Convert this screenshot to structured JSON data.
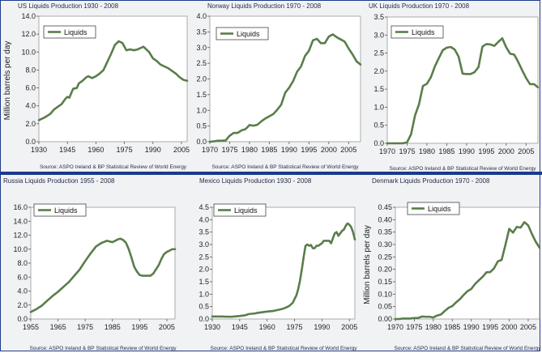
{
  "ylabel_text": "Million barrels per day",
  "charts": [
    {
      "title": "US Liquids Production 1930 - 2008",
      "source": "Source: ASPO Ireland & BP Statistical Review of World Energy",
      "legend": "Liquids",
      "ylabel": "Million barrels per day",
      "xticks": [
        1930,
        1945,
        1960,
        1975,
        1990,
        2005
      ],
      "xlim": [
        1930,
        2008
      ],
      "yticks": [
        "0.0",
        "2.0",
        "4.0",
        "6.0",
        "8.0",
        "10.0",
        "12.0",
        "14.0"
      ],
      "ylim": [
        0,
        14
      ],
      "points": [
        [
          1930,
          2.4
        ],
        [
          1933,
          2.7
        ],
        [
          1936,
          3.1
        ],
        [
          1938,
          3.6
        ],
        [
          1940,
          3.9
        ],
        [
          1942,
          4.2
        ],
        [
          1944,
          4.8
        ],
        [
          1945,
          5.0
        ],
        [
          1946,
          4.9
        ],
        [
          1948,
          5.9
        ],
        [
          1950,
          6.0
        ],
        [
          1951,
          6.5
        ],
        [
          1953,
          6.8
        ],
        [
          1955,
          7.2
        ],
        [
          1956,
          7.3
        ],
        [
          1958,
          7.1
        ],
        [
          1960,
          7.3
        ],
        [
          1962,
          7.6
        ],
        [
          1964,
          8.0
        ],
        [
          1966,
          8.9
        ],
        [
          1968,
          9.8
        ],
        [
          1970,
          10.8
        ],
        [
          1972,
          11.2
        ],
        [
          1974,
          11.0
        ],
        [
          1976,
          10.2
        ],
        [
          1978,
          10.3
        ],
        [
          1980,
          10.2
        ],
        [
          1982,
          10.3
        ],
        [
          1984,
          10.5
        ],
        [
          1985,
          10.6
        ],
        [
          1986,
          10.4
        ],
        [
          1988,
          10.0
        ],
        [
          1990,
          9.3
        ],
        [
          1992,
          9.0
        ],
        [
          1994,
          8.6
        ],
        [
          1996,
          8.4
        ],
        [
          1998,
          8.2
        ],
        [
          2000,
          7.9
        ],
        [
          2002,
          7.6
        ],
        [
          2004,
          7.2
        ],
        [
          2006,
          6.9
        ],
        [
          2008,
          6.8
        ]
      ]
    },
    {
      "title": "Norway Liquids Production 1970 - 2008",
      "source": "Source: ASPO Ireland & BP Statistical Review of World Energy",
      "legend": "Liquids",
      "ylabel": "",
      "xticks": [
        1970,
        1975,
        1980,
        1985,
        1990,
        1995,
        2000,
        2005
      ],
      "xlim": [
        1970,
        2008
      ],
      "yticks": [
        "0.0",
        "0.5",
        "1.0",
        "1.5",
        "2.0",
        "2.5",
        "3.0",
        "3.5",
        "4.0"
      ],
      "ylim": [
        0,
        4
      ],
      "points": [
        [
          1970,
          0.0
        ],
        [
          1971,
          0.01
        ],
        [
          1972,
          0.03
        ],
        [
          1973,
          0.03
        ],
        [
          1974,
          0.04
        ],
        [
          1975,
          0.19
        ],
        [
          1976,
          0.28
        ],
        [
          1977,
          0.28
        ],
        [
          1978,
          0.36
        ],
        [
          1979,
          0.4
        ],
        [
          1980,
          0.53
        ],
        [
          1981,
          0.51
        ],
        [
          1982,
          0.54
        ],
        [
          1983,
          0.65
        ],
        [
          1984,
          0.74
        ],
        [
          1985,
          0.81
        ],
        [
          1986,
          0.88
        ],
        [
          1987,
          1.02
        ],
        [
          1988,
          1.18
        ],
        [
          1989,
          1.56
        ],
        [
          1990,
          1.72
        ],
        [
          1991,
          1.93
        ],
        [
          1992,
          2.23
        ],
        [
          1993,
          2.4
        ],
        [
          1994,
          2.73
        ],
        [
          1995,
          2.9
        ],
        [
          1996,
          3.23
        ],
        [
          1997,
          3.28
        ],
        [
          1998,
          3.14
        ],
        [
          1999,
          3.14
        ],
        [
          2000,
          3.35
        ],
        [
          2001,
          3.42
        ],
        [
          2002,
          3.33
        ],
        [
          2003,
          3.26
        ],
        [
          2004,
          3.19
        ],
        [
          2005,
          2.97
        ],
        [
          2006,
          2.78
        ],
        [
          2007,
          2.56
        ],
        [
          2008,
          2.46
        ]
      ]
    },
    {
      "title": "UK Liquids Production 1970 - 2008",
      "source": "Source: ASPO Ireland & BP Statistical Review of World Energy",
      "legend": "Liquids",
      "ylabel": "",
      "xticks": [
        1970,
        1975,
        1980,
        1985,
        1990,
        1995,
        2000,
        2005
      ],
      "xlim": [
        1970,
        2008
      ],
      "yticks": [
        "0.0",
        "0.5",
        "1.0",
        "1.5",
        "2.0",
        "2.5",
        "3.0",
        "3.5"
      ],
      "ylim": [
        0,
        3.5
      ],
      "points": [
        [
          1970,
          0.0
        ],
        [
          1971,
          0.0
        ],
        [
          1972,
          0.0
        ],
        [
          1973,
          0.0
        ],
        [
          1974,
          0.0
        ],
        [
          1975,
          0.03
        ],
        [
          1976,
          0.25
        ],
        [
          1977,
          0.77
        ],
        [
          1978,
          1.08
        ],
        [
          1979,
          1.59
        ],
        [
          1980,
          1.65
        ],
        [
          1981,
          1.83
        ],
        [
          1982,
          2.13
        ],
        [
          1983,
          2.36
        ],
        [
          1984,
          2.58
        ],
        [
          1985,
          2.65
        ],
        [
          1986,
          2.67
        ],
        [
          1987,
          2.6
        ],
        [
          1988,
          2.4
        ],
        [
          1989,
          1.93
        ],
        [
          1990,
          1.92
        ],
        [
          1991,
          1.92
        ],
        [
          1992,
          1.97
        ],
        [
          1993,
          2.11
        ],
        [
          1994,
          2.68
        ],
        [
          1995,
          2.75
        ],
        [
          1996,
          2.74
        ],
        [
          1997,
          2.7
        ],
        [
          1998,
          2.81
        ],
        [
          1999,
          2.91
        ],
        [
          2000,
          2.66
        ],
        [
          2001,
          2.48
        ],
        [
          2002,
          2.46
        ],
        [
          2003,
          2.26
        ],
        [
          2004,
          2.03
        ],
        [
          2005,
          1.81
        ],
        [
          2006,
          1.64
        ],
        [
          2007,
          1.64
        ],
        [
          2008,
          1.55
        ]
      ]
    },
    {
      "title": "Russia Liquids Production 1955 - 2008",
      "source": "Source: ASPO Ireland & BP Statistical Review of World Energy",
      "legend": "Liquids",
      "ylabel": "",
      "xticks": [
        1955,
        1965,
        1975,
        1985,
        1995,
        2005
      ],
      "xlim": [
        1955,
        2008
      ],
      "yticks": [
        "0.0",
        "2.0",
        "4.0",
        "6.0",
        "8.0",
        "10.0",
        "12.0",
        "14.0",
        "16.0"
      ],
      "ylim": [
        0,
        16
      ],
      "points": [
        [
          1955,
          1.0
        ],
        [
          1957,
          1.4
        ],
        [
          1959,
          1.9
        ],
        [
          1961,
          2.6
        ],
        [
          1963,
          3.3
        ],
        [
          1965,
          3.9
        ],
        [
          1967,
          4.6
        ],
        [
          1969,
          5.3
        ],
        [
          1971,
          6.2
        ],
        [
          1973,
          7.1
        ],
        [
          1975,
          8.3
        ],
        [
          1977,
          9.4
        ],
        [
          1979,
          10.4
        ],
        [
          1981,
          10.9
        ],
        [
          1983,
          11.2
        ],
        [
          1985,
          11.0
        ],
        [
          1987,
          11.4
        ],
        [
          1988,
          11.5
        ],
        [
          1989,
          11.3
        ],
        [
          1990,
          10.9
        ],
        [
          1991,
          10.0
        ],
        [
          1992,
          8.8
        ],
        [
          1993,
          7.5
        ],
        [
          1994,
          6.8
        ],
        [
          1995,
          6.3
        ],
        [
          1996,
          6.2
        ],
        [
          1997,
          6.2
        ],
        [
          1998,
          6.2
        ],
        [
          1999,
          6.2
        ],
        [
          2000,
          6.5
        ],
        [
          2001,
          7.1
        ],
        [
          2002,
          7.7
        ],
        [
          2003,
          8.6
        ],
        [
          2004,
          9.3
        ],
        [
          2005,
          9.6
        ],
        [
          2006,
          9.8
        ],
        [
          2007,
          10.0
        ],
        [
          2008,
          10.0
        ]
      ]
    },
    {
      "title": "Mexico Liquids Production 1930 - 2008",
      "source": "Source: ASPO Ireland & BP Statistical Review of World Energy",
      "legend": "Liquids",
      "ylabel": "",
      "xticks": [
        1930,
        1945,
        1960,
        1975,
        1990,
        2005
      ],
      "xlim": [
        1930,
        2008
      ],
      "yticks": [
        "0.0",
        "0.5",
        "1.0",
        "1.5",
        "2.0",
        "2.5",
        "3.0",
        "3.5",
        "4.0",
        "4.5"
      ],
      "ylim": [
        0,
        4.5
      ],
      "points": [
        [
          1930,
          0.1
        ],
        [
          1935,
          0.1
        ],
        [
          1940,
          0.09
        ],
        [
          1942,
          0.1
        ],
        [
          1945,
          0.12
        ],
        [
          1948,
          0.15
        ],
        [
          1950,
          0.2
        ],
        [
          1953,
          0.22
        ],
        [
          1955,
          0.25
        ],
        [
          1958,
          0.28
        ],
        [
          1960,
          0.3
        ],
        [
          1963,
          0.32
        ],
        [
          1965,
          0.35
        ],
        [
          1968,
          0.4
        ],
        [
          1970,
          0.45
        ],
        [
          1972,
          0.52
        ],
        [
          1974,
          0.65
        ],
        [
          1975,
          0.8
        ],
        [
          1976,
          0.95
        ],
        [
          1977,
          1.2
        ],
        [
          1978,
          1.55
        ],
        [
          1979,
          2.0
        ],
        [
          1980,
          2.5
        ],
        [
          1981,
          2.95
        ],
        [
          1982,
          3.0
        ],
        [
          1983,
          2.95
        ],
        [
          1984,
          2.98
        ],
        [
          1985,
          2.85
        ],
        [
          1986,
          2.85
        ],
        [
          1987,
          2.95
        ],
        [
          1988,
          2.95
        ],
        [
          1989,
          3.0
        ],
        [
          1990,
          3.05
        ],
        [
          1991,
          3.15
        ],
        [
          1992,
          3.15
        ],
        [
          1993,
          3.15
        ],
        [
          1994,
          3.15
        ],
        [
          1995,
          3.05
        ],
        [
          1996,
          3.25
        ],
        [
          1997,
          3.45
        ],
        [
          1998,
          3.5
        ],
        [
          1999,
          3.35
        ],
        [
          2000,
          3.45
        ],
        [
          2001,
          3.55
        ],
        [
          2002,
          3.6
        ],
        [
          2003,
          3.75
        ],
        [
          2004,
          3.85
        ],
        [
          2005,
          3.8
        ],
        [
          2006,
          3.7
        ],
        [
          2007,
          3.5
        ],
        [
          2008,
          3.2
        ]
      ]
    },
    {
      "title": "Denmark Liquids Production 1970 - 2008",
      "source": "Source: ASPO Ireland & BP Statistical Review of World Energy",
      "legend": "Liquids",
      "ylabel": "Million barrels per day",
      "xticks": [
        1970,
        1975,
        1980,
        1985,
        1990,
        1995,
        2000,
        2005
      ],
      "xlim": [
        1970,
        2008
      ],
      "yticks": [
        "0.00",
        "0.05",
        "0.10",
        "0.15",
        "0.20",
        "0.25",
        "0.30",
        "0.35",
        "0.40",
        "0.45"
      ],
      "ylim": [
        0,
        0.45
      ],
      "points": [
        [
          1970,
          0.0
        ],
        [
          1971,
          0.0
        ],
        [
          1972,
          0.002
        ],
        [
          1973,
          0.002
        ],
        [
          1974,
          0.002
        ],
        [
          1975,
          0.004
        ],
        [
          1976,
          0.004
        ],
        [
          1977,
          0.01
        ],
        [
          1978,
          0.009
        ],
        [
          1979,
          0.009
        ],
        [
          1980,
          0.006
        ],
        [
          1981,
          0.014
        ],
        [
          1982,
          0.018
        ],
        [
          1983,
          0.032
        ],
        [
          1984,
          0.045
        ],
        [
          1985,
          0.052
        ],
        [
          1986,
          0.067
        ],
        [
          1987,
          0.08
        ],
        [
          1988,
          0.097
        ],
        [
          1989,
          0.112
        ],
        [
          1990,
          0.121
        ],
        [
          1991,
          0.141
        ],
        [
          1992,
          0.156
        ],
        [
          1993,
          0.17
        ],
        [
          1994,
          0.188
        ],
        [
          1995,
          0.189
        ],
        [
          1996,
          0.204
        ],
        [
          1997,
          0.232
        ],
        [
          1998,
          0.238
        ],
        [
          1999,
          0.298
        ],
        [
          2000,
          0.363
        ],
        [
          2001,
          0.348
        ],
        [
          2002,
          0.371
        ],
        [
          2003,
          0.368
        ],
        [
          2004,
          0.39
        ],
        [
          2005,
          0.377
        ],
        [
          2006,
          0.342
        ],
        [
          2007,
          0.311
        ],
        [
          2008,
          0.287
        ]
      ]
    }
  ],
  "chart_data": [
    {
      "type": "line",
      "title": "US Liquids Production 1930 - 2008",
      "ylabel": "Million barrels per day",
      "series": [
        {
          "name": "Liquids"
        }
      ],
      "ylim": [
        0,
        14
      ],
      "xlim": [
        1930,
        2008
      ]
    },
    {
      "type": "line",
      "title": "Norway Liquids Production 1970 - 2008",
      "series": [
        {
          "name": "Liquids"
        }
      ],
      "ylim": [
        0,
        4
      ],
      "xlim": [
        1970,
        2008
      ]
    },
    {
      "type": "line",
      "title": "UK Liquids Production 1970 - 2008",
      "series": [
        {
          "name": "Liquids"
        }
      ],
      "ylim": [
        0,
        3.5
      ],
      "xlim": [
        1970,
        2008
      ]
    },
    {
      "type": "line",
      "title": "Russia Liquids Production 1955 - 2008",
      "series": [
        {
          "name": "Liquids"
        }
      ],
      "ylim": [
        0,
        16
      ],
      "xlim": [
        1955,
        2008
      ]
    },
    {
      "type": "line",
      "title": "Mexico Liquids Production 1930 - 2008",
      "series": [
        {
          "name": "Liquids"
        }
      ],
      "ylim": [
        0,
        4.5
      ],
      "xlim": [
        1930,
        2008
      ]
    },
    {
      "type": "line",
      "title": "Denmark Liquids Production 1970 - 2008",
      "ylabel": "Million barrels per day",
      "series": [
        {
          "name": "Liquids"
        }
      ],
      "ylim": [
        0,
        0.45
      ],
      "xlim": [
        1970,
        2008
      ]
    }
  ],
  "colors": {
    "line": "#5a7d4a",
    "plot_bg": "#ffffff",
    "border": "#1b3a8c",
    "grid": "#d9d9d9"
  }
}
